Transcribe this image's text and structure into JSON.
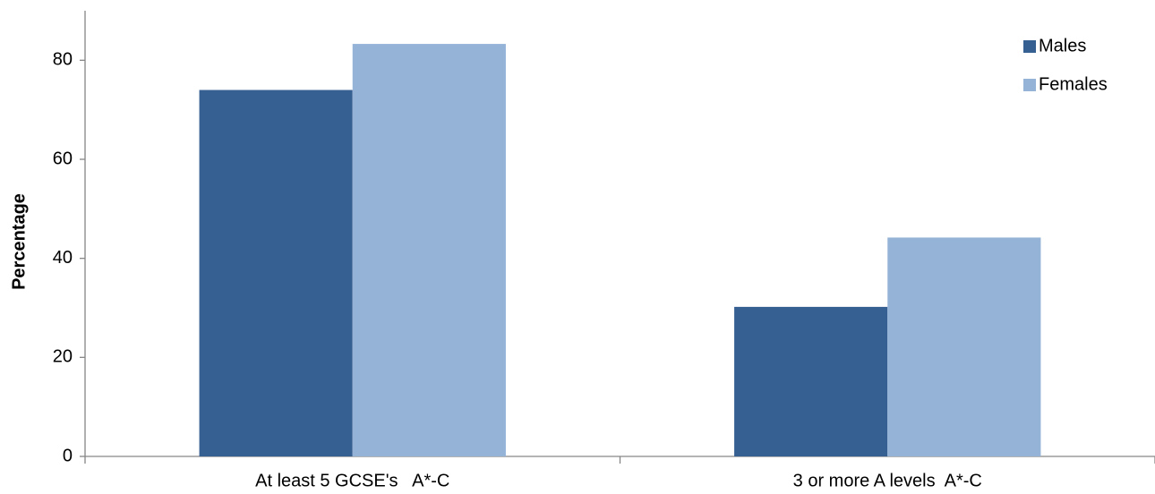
{
  "chart_data": {
    "type": "bar",
    "ylabel": "Percentage",
    "categories": [
      "At least 5 GCSE's   A*-C",
      "3 or more A levels  A*-C"
    ],
    "series": [
      {
        "name": "Males",
        "color": "#376092",
        "values": [
          74.0,
          30.2
        ]
      },
      {
        "name": "Females",
        "color": "#95b3d7",
        "values": [
          83.3,
          44.2
        ]
      }
    ],
    "ylim": [
      0,
      90
    ],
    "yticks": [
      0,
      20,
      40,
      60,
      80
    ],
    "grid": false,
    "legend": "upper-right"
  }
}
